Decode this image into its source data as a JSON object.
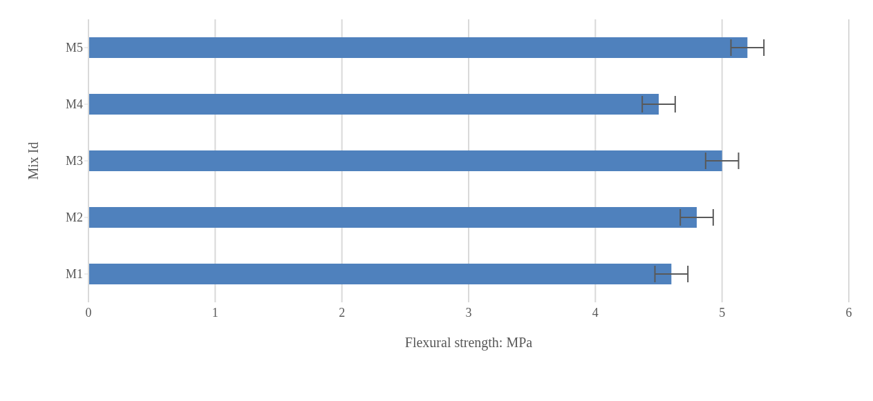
{
  "chart_data": {
    "type": "bar",
    "orientation": "horizontal",
    "categories": [
      "M5",
      "M4",
      "M3",
      "M2",
      "M1"
    ],
    "values": [
      5.2,
      4.5,
      5.0,
      4.8,
      4.6
    ],
    "errors": [
      0.13,
      0.13,
      0.13,
      0.13,
      0.13
    ],
    "color": "#4f81bd",
    "xlim": [
      0,
      6
    ],
    "xticks": [
      0,
      1,
      2,
      3,
      4,
      5,
      6
    ],
    "grid": "x",
    "xlabel": "Flexural strength: MPa",
    "ylabel": "Mix Id"
  }
}
